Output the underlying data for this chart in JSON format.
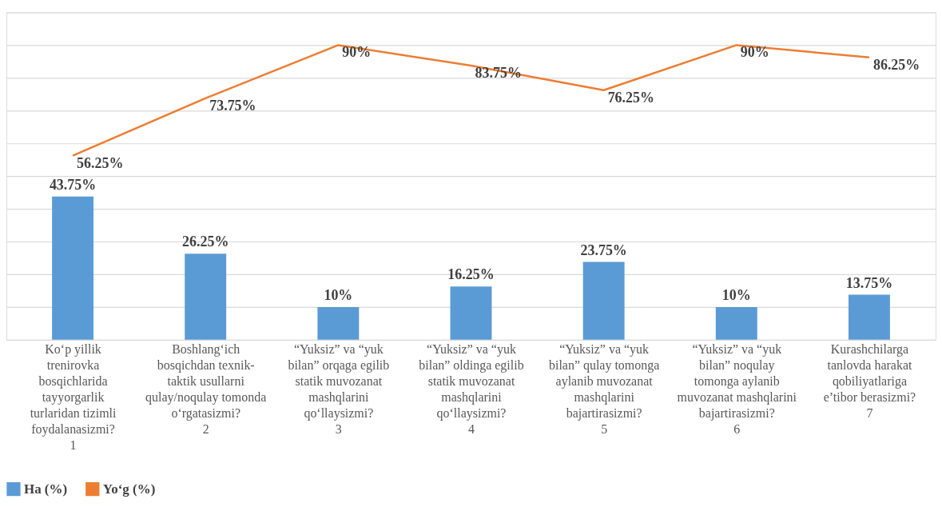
{
  "chart_data": {
    "type": "bar",
    "categories": [
      "Ko‘p yillik trenirovka bosqichlarida tayyorgarlik turlaridan tizimli foydalanasizmi?",
      "Boshlang‘ich bosqichdan texnik-taktik usullarni qulay/noqulay tomonda o‘rgatasizmi?",
      "“Yuksiz” va “yuk bilan” orqaga egilib statik muvozanat mashqlarini qo‘llaysizmi?",
      "“Yuksiz” va “yuk bilan” oldinga egilib statik muvozanat mashqlarini qo‘llaysizmi?",
      "“Yuksiz” va “yuk bilan” qulay tomonga aylanib muvozanat mashqlarini bajartirasizmi?",
      "“Yuksiz” va “yuk bilan” noqulay tomonga aylanib muvozanat mashqlarini bajartirasizmi?",
      "Kurashchilarga tanlovda harakat qobiliyatlariga e’tibor berasizmi?"
    ],
    "annotations": [
      "1",
      "2",
      "3",
      "4",
      "5",
      "6",
      "7"
    ],
    "series": [
      {
        "name": "Ha (%)",
        "color": "#5b9bd5",
        "values": [
          43.75,
          26.25,
          10,
          16.25,
          23.75,
          10,
          13.75
        ],
        "value_labels": [
          "43.75%",
          "26.25%",
          "10%",
          "16.25%",
          "23.75%",
          "10%",
          "13.75%"
        ]
      },
      {
        "name": "Yo‘g (%)",
        "type": "line",
        "color": "#ed7d31",
        "values": [
          56.25,
          73.75,
          90,
          83.75,
          76.25,
          90,
          86.25
        ],
        "value_labels": [
          "56.25%",
          "73.75%",
          "90%",
          "83.75%",
          "76.25%",
          "90%",
          "86.25%"
        ]
      }
    ],
    "ylim": [
      0,
      100
    ],
    "yticks": [
      {
        "value": 0,
        "label": null
      },
      {
        "value": 10,
        "label": null
      },
      {
        "value": 20,
        "label": null
      },
      {
        "value": 30,
        "label": null
      },
      {
        "value": 40,
        "label": null
      },
      {
        "value": 50,
        "label": null
      },
      {
        "value": 60,
        "label": null
      },
      {
        "value": 70,
        "label": null
      },
      {
        "value": 80,
        "label": null
      },
      {
        "value": 90,
        "label": null
      },
      {
        "value": 100,
        "label": null
      }
    ],
    "tick_labels": "x",
    "grid": "y",
    "legend": "bottom",
    "marker": "none",
    "line_style": "solid"
  }
}
